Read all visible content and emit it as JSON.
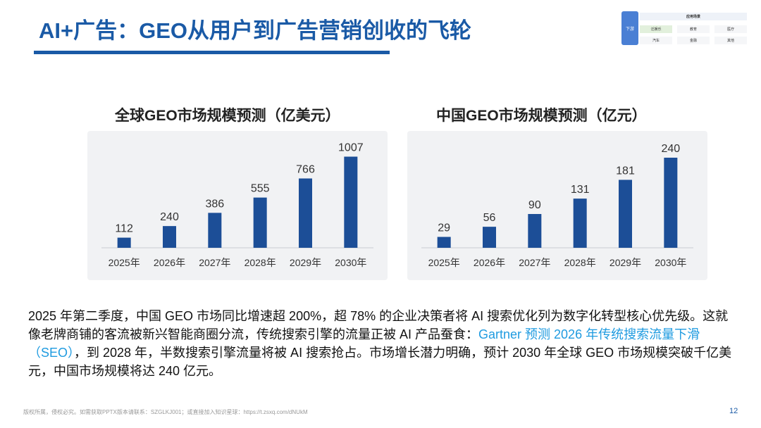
{
  "slide": {
    "title": "AI+广告：GEO从用户到广告营销创收的飞轮",
    "page_number": "12",
    "footer": "版权所属，侵权必究。如需获取PPTX版本请联系：SZGLKJ001；或直接加入知识星球：https://t.zsxq.com/dNUkM"
  },
  "mini_table": {
    "side_label": "下游",
    "header": "应用场景",
    "cells": [
      "泛娱乐",
      "教育",
      "医疗",
      "汽车",
      "金融",
      "其他"
    ]
  },
  "colors": {
    "accent": "#1a5aa6",
    "bar": "#1c4e97",
    "link": "#1f9be0"
  },
  "chart_data": [
    {
      "type": "bar",
      "title": "全球GEO市场规模预测（亿美元）",
      "categories": [
        "2025年",
        "2026年",
        "2027年",
        "2028年",
        "2029年",
        "2030年"
      ],
      "values": [
        112,
        240,
        386,
        555,
        766,
        1007
      ],
      "xlabel": "",
      "ylabel": "",
      "ylim": [
        0,
        1120
      ],
      "grid": false,
      "legend": "none"
    },
    {
      "type": "bar",
      "title": "中国GEO市场规模预测（亿元）",
      "categories": [
        "2025年",
        "2026年",
        "2027年",
        "2028年",
        "2029年",
        "2030年"
      ],
      "values": [
        29,
        56,
        90,
        131,
        181,
        240
      ],
      "xlabel": "",
      "ylabel": "",
      "ylim": [
        0,
        270
      ],
      "grid": false,
      "legend": "none"
    }
  ],
  "paragraph": {
    "part1": "2025 年第二季度，中国 GEO 市场同比增速超 200%，超 78% 的企业决策者将 AI 搜索优化列为数字化转型核心优先级。这就像老牌商铺的客流被新兴智能商圈分流，传统搜索引擎的流量正被 AI 产品蚕食：",
    "highlight1": "Gartner 预测 2026 年",
    "highlight2": "传统搜索流量下滑（SEO）",
    "part2": "，到 2028 年，半数搜索引擎流量将被 AI 搜索抢占。市场增长潜力明确，预计 2030 年全球 GEO 市场规模突破千亿美元，中国市场规模将达 240 亿元。"
  }
}
